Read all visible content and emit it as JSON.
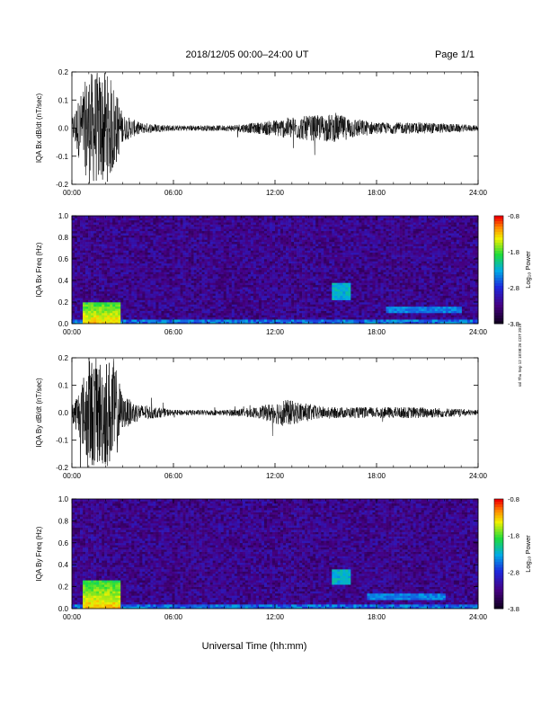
{
  "header": {
    "date_range": "2018/12/05  00:00–24:00 UT",
    "page": "Page 1/1"
  },
  "footer": {
    "xlabel": "Universal Time (hh:mm)",
    "stamp": "ssl Thu Sep 12 18:08:26 CDT 2019"
  },
  "chart_data": [
    {
      "type": "line",
      "ylabel": "IQA Bx dB/dt (nT/sec)",
      "xlabel": "",
      "x_ticks": [
        "00:00",
        "06:00",
        "12:00",
        "18:00",
        "24:00"
      ],
      "xlim": [
        "00:00",
        "24:00"
      ],
      "ylim": [
        -0.2,
        0.2
      ],
      "y_ticks": [
        "-0.2",
        "-0.1",
        "0.0",
        "0.1",
        "0.2"
      ],
      "series_envelope": [
        {
          "hour": 0.0,
          "amp": 0.04
        },
        {
          "hour": 0.5,
          "amp": 0.12
        },
        {
          "hour": 1.0,
          "amp": 0.2
        },
        {
          "hour": 1.5,
          "amp": 0.2
        },
        {
          "hour": 2.0,
          "amp": 0.2
        },
        {
          "hour": 2.5,
          "amp": 0.16
        },
        {
          "hour": 3.0,
          "amp": 0.05
        },
        {
          "hour": 4.0,
          "amp": 0.02
        },
        {
          "hour": 6.0,
          "amp": 0.01
        },
        {
          "hour": 9.0,
          "amp": 0.01
        },
        {
          "hour": 11.0,
          "amp": 0.02
        },
        {
          "hour": 13.0,
          "amp": 0.04
        },
        {
          "hour": 15.5,
          "amp": 0.05
        },
        {
          "hour": 18.0,
          "amp": 0.02
        },
        {
          "hour": 21.0,
          "amp": 0.02
        },
        {
          "hour": 24.0,
          "amp": 0.01
        }
      ]
    },
    {
      "type": "heatmap",
      "ylabel": "IQA Bx Freq (Hz)",
      "x_ticks": [
        "00:00",
        "06:00",
        "12:00",
        "18:00",
        "24:00"
      ],
      "xlim": [
        "00:00",
        "24:00"
      ],
      "ylim": [
        0.0,
        1.0
      ],
      "y_ticks": [
        "0.0",
        "0.2",
        "0.4",
        "0.6",
        "0.8",
        "1.0"
      ],
      "colorbar": {
        "label": "Log₁₀ Power",
        "ticks": [
          "-0.8",
          "-1.8",
          "-2.8",
          "-3.8"
        ],
        "range": [
          -3.8,
          -0.8
        ]
      },
      "features": [
        {
          "hour_start": 0.7,
          "hour_end": 2.8,
          "freq_max": 0.2,
          "level": -1.6
        },
        {
          "hour_start": 15.4,
          "hour_end": 16.4,
          "freq_min": 0.22,
          "freq_max": 0.38,
          "level": -2.6
        },
        {
          "hour_start": 18.5,
          "hour_end": 23.0,
          "freq_min": 0.1,
          "freq_max": 0.15,
          "level": -2.8
        }
      ]
    },
    {
      "type": "line",
      "ylabel": "IQA By dB/dt (nT/sec)",
      "xlabel": "",
      "x_ticks": [
        "00:00",
        "06:00",
        "12:00",
        "18:00",
        "24:00"
      ],
      "xlim": [
        "00:00",
        "24:00"
      ],
      "ylim": [
        -0.2,
        0.2
      ],
      "y_ticks": [
        "-0.2",
        "-0.1",
        "0.0",
        "0.1",
        "0.2"
      ],
      "series_envelope": [
        {
          "hour": 0.0,
          "amp": 0.03
        },
        {
          "hour": 0.5,
          "amp": 0.1
        },
        {
          "hour": 1.0,
          "amp": 0.2
        },
        {
          "hour": 1.5,
          "amp": 0.2
        },
        {
          "hour": 2.0,
          "amp": 0.2
        },
        {
          "hour": 2.5,
          "amp": 0.2
        },
        {
          "hour": 3.0,
          "amp": 0.06
        },
        {
          "hour": 4.0,
          "amp": 0.03
        },
        {
          "hour": 6.0,
          "amp": 0.01
        },
        {
          "hour": 9.0,
          "amp": 0.01
        },
        {
          "hour": 11.0,
          "amp": 0.02
        },
        {
          "hour": 12.5,
          "amp": 0.05
        },
        {
          "hour": 15.0,
          "amp": 0.02
        },
        {
          "hour": 18.0,
          "amp": 0.02
        },
        {
          "hour": 21.0,
          "amp": 0.02
        },
        {
          "hour": 24.0,
          "amp": 0.01
        }
      ]
    },
    {
      "type": "heatmap",
      "ylabel": "IQA By Freq (Hz)",
      "x_ticks": [
        "00:00",
        "06:00",
        "12:00",
        "18:00",
        "24:00"
      ],
      "xlim": [
        "00:00",
        "24:00"
      ],
      "ylim": [
        0.0,
        1.0
      ],
      "y_ticks": [
        "0.0",
        "0.2",
        "0.4",
        "0.6",
        "0.8",
        "1.0"
      ],
      "colorbar": {
        "label": "Log₁₀ Power",
        "ticks": [
          "-0.8",
          "-1.8",
          "-2.8",
          "-3.8"
        ],
        "range": [
          -3.8,
          -0.8
        ]
      },
      "features": [
        {
          "hour_start": 0.7,
          "hour_end": 2.8,
          "freq_max": 0.25,
          "level": -1.6
        },
        {
          "hour_start": 15.4,
          "hour_end": 16.4,
          "freq_min": 0.22,
          "freq_max": 0.36,
          "level": -2.6
        },
        {
          "hour_start": 17.5,
          "hour_end": 22.0,
          "freq_min": 0.08,
          "freq_max": 0.14,
          "level": -2.8
        }
      ]
    }
  ]
}
